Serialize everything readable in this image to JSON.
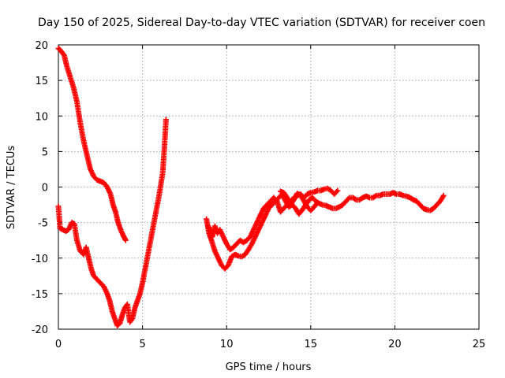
{
  "chart_data": {
    "type": "scatter",
    "title": "Day 150 of 2025, Sidereal Day-to-day VTEC variation (SDTVAR) for receiver coen",
    "xlabel": "GPS time / hours",
    "ylabel": "SDTVAR / TECUs",
    "xlim": [
      0,
      25
    ],
    "ylim": [
      -20,
      20
    ],
    "xticks": [
      0,
      5,
      10,
      15,
      20,
      25
    ],
    "yticks": [
      -20,
      -15,
      -10,
      -5,
      0,
      5,
      10,
      15,
      20
    ],
    "grid": true,
    "marker": "+",
    "color": "#ff0000",
    "series": [
      {
        "name": "receiver coen (segment 1)",
        "x": [
          0.0,
          0.1,
          0.2,
          0.35,
          0.5,
          0.7,
          0.9,
          1.1,
          1.3,
          1.5,
          1.7,
          1.9,
          2.1,
          2.3,
          2.5,
          2.7,
          2.9,
          3.1,
          3.25,
          3.4,
          3.55,
          3.7,
          3.85,
          4.0
        ],
        "y": [
          19.5,
          19.3,
          19.0,
          18.5,
          17.0,
          15.5,
          14.0,
          12.0,
          9.0,
          6.5,
          4.5,
          2.5,
          1.5,
          1.0,
          0.8,
          0.6,
          0.0,
          -1.0,
          -2.5,
          -3.5,
          -5.0,
          -6.0,
          -6.8,
          -7.5
        ]
      },
      {
        "name": "receiver coen (segment 2)",
        "x": [
          0.0,
          0.1,
          0.25,
          0.45,
          0.6,
          0.8,
          0.95,
          1.1,
          1.3,
          1.5,
          1.65,
          1.8,
          1.95,
          2.1,
          2.3,
          2.5,
          2.7,
          2.9,
          3.05,
          3.2,
          3.35,
          3.5,
          3.65,
          3.8,
          3.95,
          4.1,
          4.25,
          4.4,
          4.55,
          4.7,
          4.85,
          5.0,
          5.2,
          5.4,
          5.6,
          5.8,
          6.0,
          6.2,
          6.3,
          6.4
        ],
        "y": [
          -2.7,
          -5.8,
          -6.0,
          -6.2,
          -6.0,
          -5.0,
          -5.2,
          -7.5,
          -9.0,
          -9.5,
          -8.5,
          -10.0,
          -11.5,
          -12.5,
          -13.0,
          -13.5,
          -14.0,
          -15.0,
          -16.0,
          -17.5,
          -18.5,
          -19.5,
          -19.2,
          -18.0,
          -17.0,
          -16.5,
          -19.0,
          -18.5,
          -17.0,
          -16.0,
          -15.0,
          -13.5,
          -11.0,
          -8.5,
          -6.0,
          -3.5,
          -1.0,
          2.0,
          5.5,
          9.5
        ]
      },
      {
        "name": "receiver coen (segment 3)",
        "x": [
          8.8,
          8.95,
          9.1,
          9.3,
          9.5,
          9.7,
          9.9,
          10.1,
          10.3,
          10.5,
          10.7,
          10.9,
          11.1,
          11.3,
          11.5,
          11.7,
          11.9,
          12.1,
          12.3,
          12.5,
          12.7,
          12.9,
          13.1,
          13.3,
          13.5,
          13.7,
          13.9,
          14.1,
          14.3,
          14.5,
          14.7,
          14.9,
          15.1,
          15.3,
          15.5,
          15.7,
          15.9,
          16.1,
          16.3,
          16.5,
          16.7,
          16.9,
          17.1,
          17.3,
          17.5,
          17.7,
          17.9,
          18.1,
          18.3,
          18.5,
          18.7,
          18.9,
          19.1,
          19.3,
          19.5,
          19.7,
          19.9,
          20.1,
          20.3,
          20.5,
          20.7,
          20.9,
          21.1,
          21.3,
          21.5,
          21.7,
          21.9,
          22.1,
          22.3,
          22.5,
          22.7,
          22.9
        ],
        "y": [
          -4.5,
          -6.5,
          -7.5,
          -9.0,
          -10.0,
          -11.0,
          -11.5,
          -11.0,
          -9.8,
          -9.5,
          -9.7,
          -9.8,
          -9.5,
          -8.8,
          -8.0,
          -7.0,
          -6.0,
          -5.0,
          -4.0,
          -3.0,
          -2.5,
          -2.0,
          -1.5,
          -1.0,
          -2.0,
          -2.8,
          -2.5,
          -3.0,
          -3.8,
          -3.2,
          -2.5,
          -1.8,
          -1.5,
          -2.0,
          -2.3,
          -2.5,
          -2.6,
          -2.8,
          -3.0,
          -3.0,
          -2.8,
          -2.5,
          -2.0,
          -1.5,
          -1.5,
          -1.8,
          -1.8,
          -1.5,
          -1.3,
          -1.5,
          -1.5,
          -1.2,
          -1.2,
          -1.0,
          -1.0,
          -1.0,
          -0.8,
          -1.0,
          -1.0,
          -1.2,
          -1.3,
          -1.5,
          -1.8,
          -2.0,
          -2.5,
          -3.0,
          -3.2,
          -3.3,
          -3.0,
          -2.5,
          -2.0,
          -1.2
        ]
      },
      {
        "name": "receiver coen (segment 4)",
        "x": [
          8.9,
          9.0,
          9.15,
          9.3,
          9.45,
          9.6,
          9.8,
          10.0,
          10.2,
          10.4,
          10.6,
          10.8,
          11.0,
          11.2,
          11.4,
          11.6,
          11.8,
          12.0,
          12.2,
          12.4,
          12.6,
          12.8,
          13.0,
          13.2,
          13.4,
          13.6,
          13.8,
          14.0,
          14.2,
          14.4,
          14.6,
          14.8,
          15.0,
          15.2,
          15.4,
          15.6,
          15.8,
          16.0,
          16.2,
          16.4,
          16.6
        ],
        "y": [
          -5.5,
          -6.0,
          -7.0,
          -5.5,
          -6.5,
          -6.0,
          -7.0,
          -8.0,
          -8.8,
          -8.5,
          -8.0,
          -7.5,
          -7.8,
          -7.5,
          -7.0,
          -6.0,
          -5.0,
          -4.0,
          -3.0,
          -2.5,
          -2.0,
          -1.5,
          -2.0,
          -3.5,
          -3.0,
          -2.5,
          -2.0,
          -1.5,
          -1.2,
          -1.0,
          -1.5,
          -1.0,
          -0.8,
          -0.7,
          -0.5,
          -0.5,
          -0.3,
          -0.2,
          -0.5,
          -1.0,
          -0.5
        ]
      },
      {
        "name": "receiver coen (segment 5)",
        "x": [
          13.2,
          13.4,
          13.6,
          13.8,
          14.0,
          14.2,
          14.4,
          14.6,
          14.8,
          15.0,
          15.2,
          15.4
        ],
        "y": [
          -0.6,
          -0.8,
          -1.5,
          -2.5,
          -1.8,
          -0.9,
          -1.2,
          -2.0,
          -2.8,
          -3.3,
          -2.8,
          -2.2
        ]
      }
    ]
  }
}
